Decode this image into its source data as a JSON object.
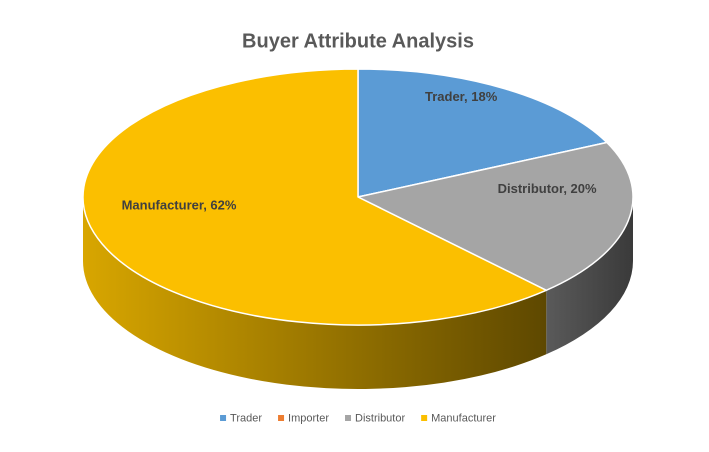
{
  "chart_data": {
    "type": "pie",
    "title": "Buyer Attribute Analysis",
    "categories": [
      "Trader",
      "Importer",
      "Distributor",
      "Manufacturer"
    ],
    "values": [
      18,
      0,
      20,
      62
    ],
    "value_labels": [
      "Trader, 18%",
      null,
      "Distributor, 20%",
      "Manufacturer, 62%"
    ],
    "colors": [
      "#5b9bd5",
      "#ed7d31",
      "#a5a5a5",
      "#fbbf00"
    ],
    "legend": "bottom",
    "three_d": true
  }
}
